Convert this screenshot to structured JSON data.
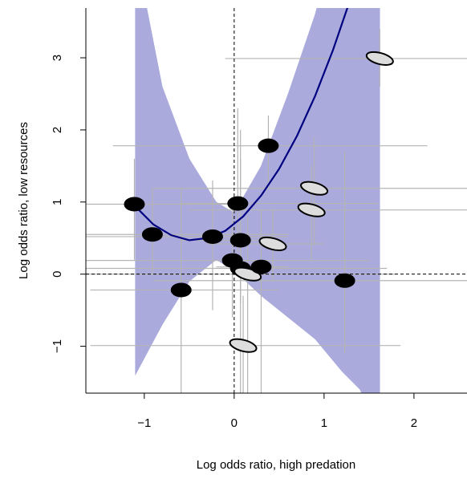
{
  "chart_data": {
    "type": "scatter",
    "x_label": "Log odds ratio, high predation",
    "y_label": "Log odds ratio, low resources",
    "xlim": [
      -1.65,
      2.59
    ],
    "ylim": [
      -1.65,
      3.69
    ],
    "xticks": [
      {
        "value": -1,
        "label": "−1"
      },
      0,
      1,
      2
    ],
    "yticks": [
      {
        "value": -1,
        "label": "−1"
      },
      0,
      1,
      2,
      3
    ],
    "zero_lines": true,
    "errorbar_color": "#b4b4b4",
    "band": {
      "color": "#aaaadc",
      "x": [
        -1.1,
        -0.8,
        -0.5,
        -0.2,
        0.0,
        0.3,
        0.6,
        0.9,
        1.2,
        1.4,
        1.62
      ],
      "upper": [
        4.5,
        2.6,
        1.6,
        1.0,
        0.85,
        1.5,
        2.5,
        3.6,
        5.0,
        5.8,
        6.5
      ],
      "lower": [
        -1.4,
        -0.7,
        -0.1,
        0.2,
        0.05,
        -0.3,
        -0.6,
        -0.9,
        -1.35,
        -1.6,
        -2.2
      ]
    },
    "fit": {
      "color": "#000080",
      "x": [
        -1.1,
        -0.9,
        -0.7,
        -0.5,
        -0.3,
        -0.1,
        0.1,
        0.3,
        0.5,
        0.7,
        0.9,
        1.1,
        1.3
      ],
      "y": [
        0.94,
        0.69,
        0.54,
        0.47,
        0.5,
        0.6,
        0.8,
        1.09,
        1.46,
        1.92,
        2.47,
        3.11,
        3.84
      ]
    },
    "points": [
      {
        "x": -1.11,
        "y": 0.97,
        "x_ci": [
          -1.75,
          0.0
        ],
        "y_ci": [
          0.2,
          1.6
        ],
        "marker": "animal"
      },
      {
        "x": -0.91,
        "y": 0.55,
        "x_ci": [
          -1.65,
          0.6
        ],
        "y_ci": [
          0.0,
          1.2
        ],
        "marker": "animal"
      },
      {
        "x": 0.04,
        "y": 0.98,
        "x_ci": [
          -0.6,
          1.6
        ],
        "y_ci": [
          0.3,
          2.3
        ],
        "marker": "animal"
      },
      {
        "x": 0.38,
        "y": 1.78,
        "x_ci": [
          -1.35,
          2.15
        ],
        "y_ci": [
          1.2,
          2.2
        ],
        "marker": "animal"
      },
      {
        "x": 1.62,
        "y": 2.99,
        "x_ci": [
          -0.1,
          2.6
        ],
        "y_ci": [
          2.6,
          3.4
        ],
        "marker": "seed"
      },
      {
        "x": 0.89,
        "y": 1.19,
        "x_ci": [
          -0.9,
          2.6
        ],
        "y_ci": [
          0.4,
          1.9
        ],
        "marker": "seed"
      },
      {
        "x": 0.86,
        "y": 0.89,
        "x_ci": [
          -0.5,
          2.6
        ],
        "y_ci": [
          0.2,
          1.5
        ],
        "marker": "seed"
      },
      {
        "x": 0.43,
        "y": 0.42,
        "x_ci": [
          -0.3,
          1.0
        ],
        "y_ci": [
          -0.1,
          0.9
        ],
        "marker": "seed"
      },
      {
        "x": 1.23,
        "y": -0.09,
        "x_ci": [
          -0.9,
          2.6
        ],
        "y_ci": [
          -1.1,
          1.7
        ],
        "marker": "animal"
      },
      {
        "x": 0.1,
        "y": -0.99,
        "x_ci": [
          -1.6,
          1.85
        ],
        "y_ci": [
          -1.65,
          -0.3
        ],
        "marker": "seed"
      },
      {
        "x": -0.59,
        "y": -0.22,
        "x_ci": [
          -1.6,
          0.5
        ],
        "y_ci": [
          -1.65,
          1.2
        ],
        "marker": "animal"
      },
      {
        "x": -0.24,
        "y": 0.52,
        "x_ci": [
          -1.65,
          0.6
        ],
        "y_ci": [
          -0.5,
          1.3
        ],
        "marker": "animal"
      },
      {
        "x": 0.07,
        "y": 0.47,
        "x_ci": [
          -0.6,
          0.5
        ],
        "y_ci": [
          -0.4,
          1.6
        ],
        "marker": "animal"
      },
      {
        "x": 0.07,
        "y": 0.08,
        "x_ci": [
          -1.65,
          1.7
        ],
        "y_ci": [
          -1.65,
          2.0
        ],
        "marker": "animal"
      },
      {
        "x": -0.02,
        "y": 0.19,
        "x_ci": [
          -1.65,
          1.5
        ],
        "y_ci": [
          -0.6,
          1.0
        ],
        "marker": "animal"
      },
      {
        "x": 0.15,
        "y": 0.0,
        "x_ci": [
          -1.65,
          1.8
        ],
        "y_ci": [
          -1.65,
          0.8
        ],
        "marker": "seed"
      },
      {
        "x": 0.3,
        "y": 0.1,
        "x_ci": [
          -0.2,
          0.6
        ],
        "y_ci": [
          -1.65,
          0.9
        ],
        "marker": "animal"
      }
    ]
  }
}
